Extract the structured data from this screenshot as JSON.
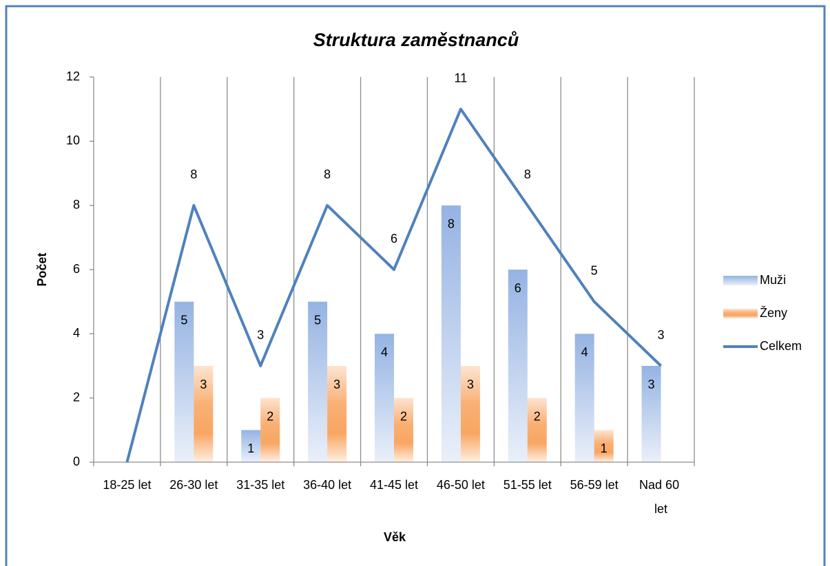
{
  "chart_data": {
    "type": "bar",
    "title": "Struktura zaměstnanců",
    "x_label": "Věk",
    "y_label": "Počet",
    "categories": [
      "18-25 let",
      "26-30 let",
      "31-35 let",
      "36-40 let",
      "41-45 let",
      "46-50 let",
      "51-55 let",
      "56-59 let",
      "Nad 60 let"
    ],
    "series": [
      {
        "name": "Muži",
        "type": "bar",
        "color": "#95b3e3",
        "values": [
          null,
          5,
          1,
          5,
          4,
          8,
          6,
          4,
          3
        ]
      },
      {
        "name": "Ženy",
        "type": "bar",
        "color": "#f79646",
        "values": [
          null,
          3,
          2,
          3,
          2,
          3,
          2,
          1,
          null
        ]
      },
      {
        "name": "Celkem",
        "type": "line",
        "color": "#4f81bd",
        "values": [
          0,
          8,
          3,
          8,
          6,
          11,
          8,
          5,
          3
        ]
      }
    ],
    "ylim": [
      0,
      12
    ],
    "yticks": [
      0,
      2,
      4,
      6,
      8,
      10,
      12
    ],
    "legend": "right"
  }
}
